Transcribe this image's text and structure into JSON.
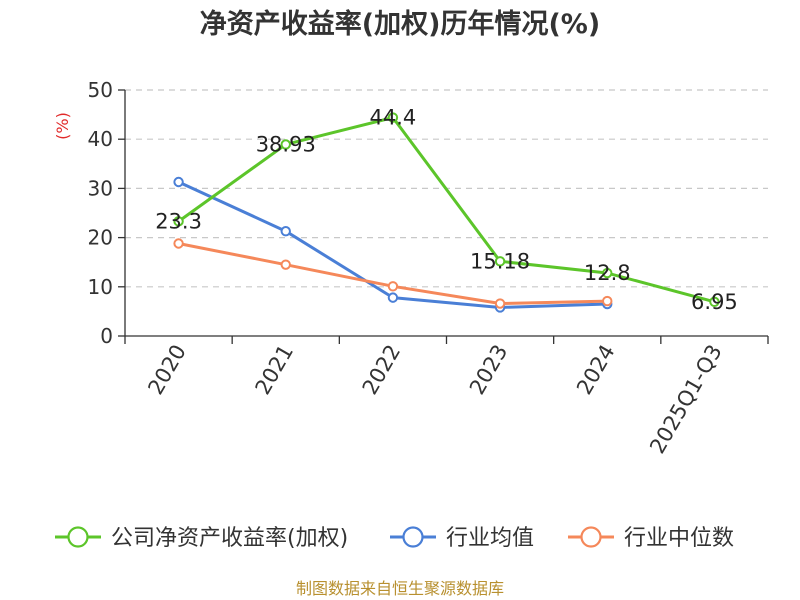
{
  "chart_data": {
    "type": "line",
    "title": "净资产收益率(加权)历年情况(%)",
    "ylabel": "(%)",
    "xlabel": "",
    "ylim": [
      0,
      50
    ],
    "yticks": [
      0,
      10,
      20,
      30,
      40,
      50
    ],
    "grid": true,
    "legend_position": "bottom",
    "categories": [
      "2020",
      "2021",
      "2022",
      "2023",
      "2024",
      "2025Q1-Q3"
    ],
    "series": [
      {
        "name": "公司净资产收益率(加权)",
        "color": "#5cc52a",
        "values": [
          23.3,
          38.93,
          44.4,
          15.18,
          12.8,
          6.95
        ],
        "data_labels": [
          "23.3",
          "38.93",
          "44.4",
          "15.18",
          "12.8",
          "6.95"
        ]
      },
      {
        "name": "行业均值",
        "color": "#4a7fd6",
        "values": [
          31.3,
          21.3,
          7.8,
          5.8,
          6.5,
          null
        ]
      },
      {
        "name": "行业中位数",
        "color": "#f5885a",
        "values": [
          18.8,
          14.5,
          10.1,
          6.6,
          7.1,
          null
        ]
      }
    ],
    "source": "制图数据来自恒生聚源数据库"
  }
}
